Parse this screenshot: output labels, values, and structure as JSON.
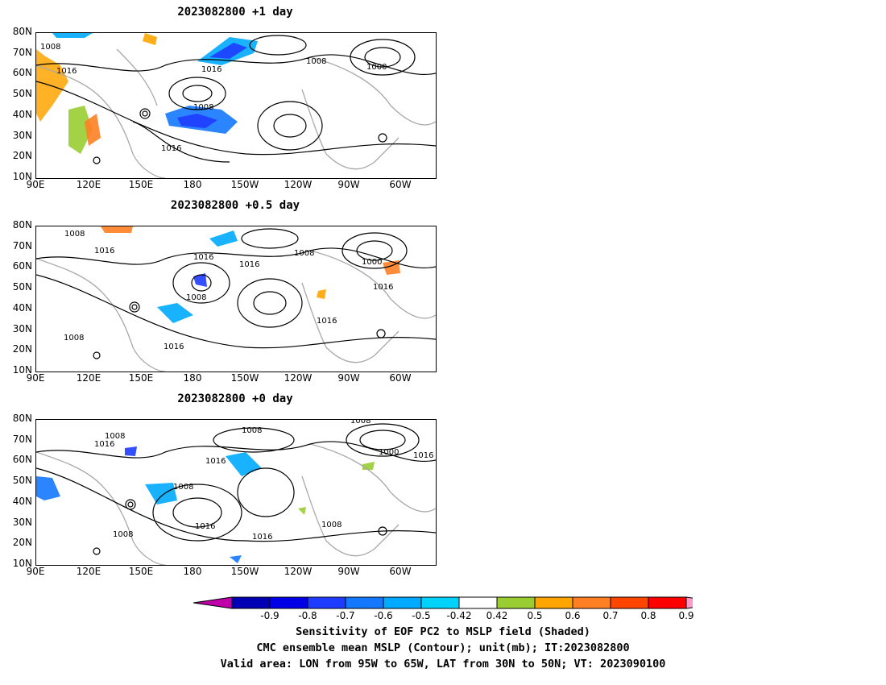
{
  "panels": [
    {
      "title": "2023082800  +1 day"
    },
    {
      "title": "2023082800  +0.5 day"
    },
    {
      "title": "2023082800  +0 day"
    }
  ],
  "lat_ticks": [
    "80N",
    "70N",
    "60N",
    "50N",
    "40N",
    "30N",
    "20N",
    "10N"
  ],
  "lon_ticks": [
    "90E",
    "120E",
    "150E",
    "180",
    "150W",
    "120W",
    "90W",
    "60W"
  ],
  "contour_labels": [
    "1008",
    "1016",
    "1000"
  ],
  "colorbar": {
    "labels": [
      "-0.9",
      "-0.8",
      "-0.7",
      "-0.6",
      "-0.5",
      "-0.42",
      "0.42",
      "0.5",
      "0.6",
      "0.7",
      "0.8",
      "0.9"
    ],
    "colors": [
      "#c000a8",
      "#0000b4",
      "#0000e6",
      "#1e3cff",
      "#1478ff",
      "#00aaff",
      "#00d2fa",
      "#ffffff",
      "#9acd32",
      "#ffa500",
      "#ff7f24",
      "#ff4500",
      "#ff0000",
      "#ff9ac8"
    ]
  },
  "caption": {
    "line1": "Sensitivity of EOF PC2 to MSLP field (Shaded)",
    "line2": "CMC ensemble mean MSLP (Contour); unit(mb); IT:2023082800",
    "line3": "Valid area: LON from 95W to 65W, LAT from 30N to 50N; VT: 2023090100"
  }
}
